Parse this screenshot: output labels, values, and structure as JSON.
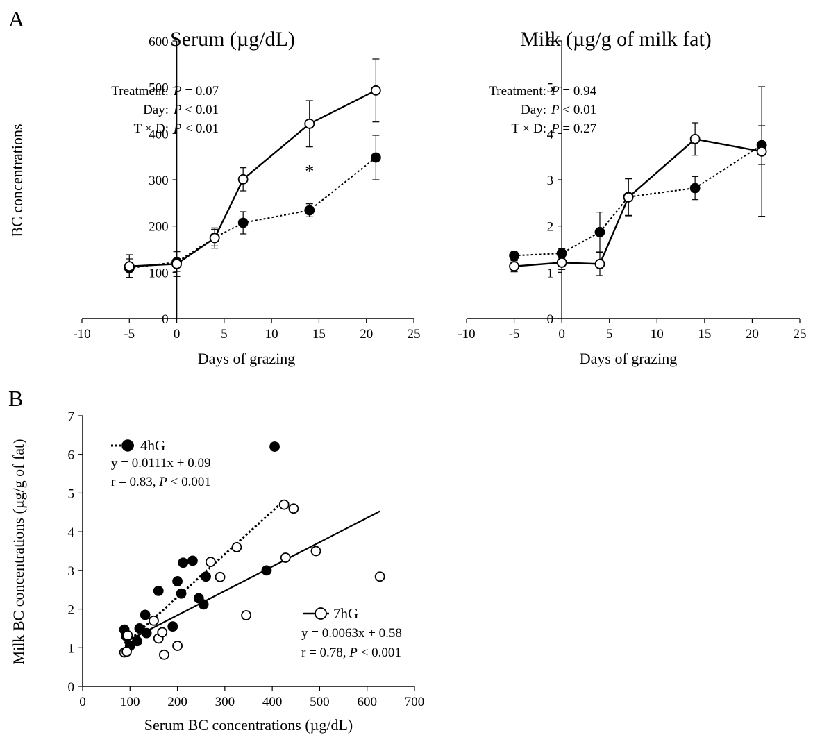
{
  "figure": {
    "panel_a_label": "A",
    "panel_b_label": "B"
  },
  "chart_data": [
    {
      "id": "serum",
      "type": "line",
      "title": "Serum (µg/dL)",
      "xlabel": "Days of grazing",
      "ylabel": "BC concentrations",
      "xlim": [
        -10,
        25
      ],
      "ylim": [
        0,
        600
      ],
      "xticks": [
        -10,
        -5,
        0,
        5,
        10,
        15,
        20,
        25
      ],
      "yticks": [
        0,
        100,
        200,
        300,
        400,
        500,
        600
      ],
      "grid": false,
      "x": [
        -5,
        0,
        4,
        7,
        14,
        21
      ],
      "series": [
        {
          "marker": "filled-circle",
          "line": "dotted",
          "values": [
            109,
            122,
            175,
            207,
            234,
            348
          ],
          "errors": [
            20,
            20,
            18,
            24,
            14,
            48
          ]
        },
        {
          "marker": "open-circle",
          "line": "solid",
          "values": [
            113,
            118,
            174,
            301,
            421,
            493
          ],
          "errors": [
            25,
            27,
            22,
            25,
            50,
            68
          ]
        }
      ],
      "annotations": [
        {
          "text": "*",
          "x": 14,
          "y": 320
        },
        {
          "label": "Treatment:",
          "prefix": "P",
          "value": " = 0.07"
        },
        {
          "label": "Day:",
          "prefix": "P",
          "value": " < 0.01"
        },
        {
          "label": "T × D:",
          "prefix": "P",
          "value": " < 0.01"
        }
      ]
    },
    {
      "id": "milk",
      "type": "line",
      "title": "Milk (µg/g of milk fat)",
      "xlabel": "Days of grazing",
      "ylabel": "",
      "xlim": [
        -10,
        25
      ],
      "ylim": [
        0,
        6
      ],
      "xticks": [
        -10,
        -5,
        0,
        5,
        10,
        15,
        20,
        25
      ],
      "yticks": [
        0,
        1,
        2,
        3,
        4,
        5,
        6
      ],
      "grid": false,
      "x": [
        -5,
        0,
        4,
        7,
        14,
        21
      ],
      "series": [
        {
          "marker": "filled-circle",
          "line": "dotted",
          "values": [
            1.36,
            1.41,
            1.87,
            2.63,
            2.82,
            3.75
          ],
          "errors": [
            0.1,
            0.1,
            0.43,
            0.4,
            0.25,
            0.42
          ]
        },
        {
          "marker": "open-circle",
          "line": "solid",
          "values": [
            1.13,
            1.21,
            1.18,
            2.62,
            3.88,
            3.61
          ],
          "errors": [
            0.12,
            0.15,
            0.25,
            0.4,
            0.35,
            1.4
          ]
        }
      ],
      "annotations": [
        {
          "label": "Treatment:",
          "prefix": "P",
          "value": " = 0.94"
        },
        {
          "label": "Day:",
          "prefix": "P",
          "value": " < 0.01"
        },
        {
          "label": "T × D:",
          "prefix": "P",
          "value": " = 0.27"
        }
      ]
    },
    {
      "id": "corr",
      "type": "scatter",
      "title": "",
      "xlabel": "Serum BC concentrations (µg/dL)",
      "ylabel": "Milk BC concentrations (µg/g of fat)",
      "xlim": [
        0,
        700
      ],
      "ylim": [
        0,
        7
      ],
      "xticks": [
        0,
        100,
        200,
        300,
        400,
        500,
        600,
        700
      ],
      "yticks": [
        0,
        1,
        2,
        3,
        4,
        5,
        6,
        7
      ],
      "grid": false,
      "series": [
        {
          "name": "4hG",
          "marker": "filled-circle",
          "line": "dotted",
          "equation": "y = 0.0111x + 0.09",
          "stat_prefix": "r = 0.83, ",
          "stat_italic": "P",
          "stat_suffix": " < 0.001",
          "fit": {
            "slope": 0.0111,
            "intercept": 0.09,
            "x_range": [
              90,
              425
            ]
          },
          "points": [
            [
              88,
              1.47
            ],
            [
              92,
              1.3
            ],
            [
              100,
              1.05
            ],
            [
              115,
              1.17
            ],
            [
              120,
              1.5
            ],
            [
              132,
              1.85
            ],
            [
              135,
              1.38
            ],
            [
              160,
              2.47
            ],
            [
              190,
              1.55
            ],
            [
              200,
              2.72
            ],
            [
              212,
              3.2
            ],
            [
              208,
              2.4
            ],
            [
              232,
              3.25
            ],
            [
              245,
              2.28
            ],
            [
              255,
              2.12
            ],
            [
              260,
              2.84
            ],
            [
              388,
              3.0
            ],
            [
              405,
              6.2
            ]
          ]
        },
        {
          "name": "7hG",
          "marker": "open-circle",
          "line": "solid",
          "equation": "y = 0.0063x + 0.58",
          "stat_prefix": "r = 0.78, ",
          "stat_italic": "P",
          "stat_suffix": " < 0.001",
          "fit": {
            "slope": 0.0063,
            "intercept": 0.58,
            "x_range": [
              88,
              627
            ]
          },
          "points": [
            [
              88,
              0.88
            ],
            [
              93,
              0.9
            ],
            [
              95,
              1.32
            ],
            [
              150,
              1.7
            ],
            [
              160,
              1.24
            ],
            [
              168,
              1.4
            ],
            [
              172,
              0.82
            ],
            [
              200,
              1.05
            ],
            [
              270,
              3.22
            ],
            [
              290,
              2.83
            ],
            [
              325,
              3.6
            ],
            [
              345,
              1.84
            ],
            [
              425,
              4.7
            ],
            [
              428,
              3.33
            ],
            [
              445,
              4.6
            ],
            [
              492,
              3.5
            ],
            [
              627,
              2.84
            ]
          ]
        }
      ]
    }
  ]
}
